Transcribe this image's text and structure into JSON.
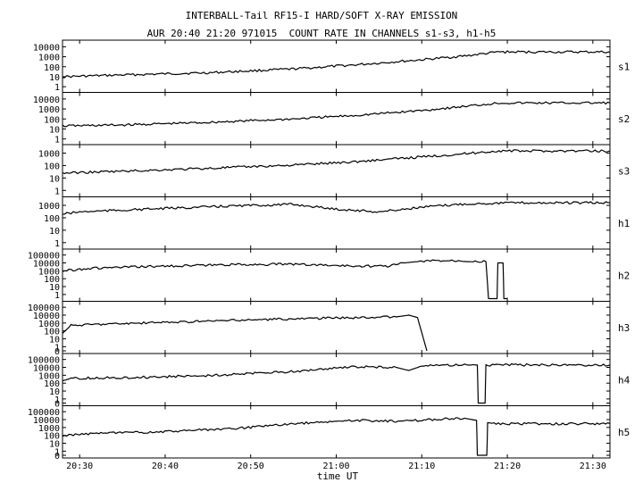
{
  "figure": {
    "title": "INTERBALL-Tail RF15-I HARD/SOFT X-RAY EMISSION",
    "subtitle": "AUR 20:40 21:20 971015  COUNT RATE IN CHANNELS s1-s3, h1-h5",
    "xlabel": "time UT"
  },
  "chart_data": {
    "type": "line",
    "title": "INTERBALL-Tail RF15-I HARD/SOFT X-RAY EMISSION",
    "subtitle": "AUR 20:40 21:20 971015  COUNT RATE IN CHANNELS s1-s3, h1-h5",
    "xlabel": "time UT",
    "x_unit": "minutes after 20:00 UT",
    "xlim": [
      28,
      92
    ],
    "x_ticks": [
      30,
      40,
      50,
      60,
      70,
      80,
      90
    ],
    "x_tick_labels": [
      "20:30",
      "20:40",
      "20:50",
      "21:00",
      "21:10",
      "21:20",
      "21:30"
    ],
    "yscale": "log",
    "grid": false,
    "panels": [
      {
        "name": "s1",
        "yticks": [
          1,
          10,
          100,
          1000,
          10000
        ],
        "ytick_labels": [
          "1",
          "10",
          "100",
          "1000",
          "10000"
        ],
        "ylim": [
          0.5,
          20000
        ],
        "points": [
          [
            28,
            10
          ],
          [
            35,
            15
          ],
          [
            45,
            25
          ],
          [
            55,
            60
          ],
          [
            62,
            150
          ],
          [
            70,
            500
          ],
          [
            75,
            1200
          ],
          [
            79,
            3000
          ],
          [
            92,
            3000
          ]
        ]
      },
      {
        "name": "s2",
        "yticks": [
          1,
          10,
          100,
          1000,
          10000
        ],
        "ytick_labels": [
          "1",
          "10",
          "100",
          "1000",
          "10000"
        ],
        "ylim": [
          0.5,
          20000
        ],
        "points": [
          [
            28,
            20
          ],
          [
            35,
            25
          ],
          [
            45,
            45
          ],
          [
            55,
            100
          ],
          [
            62,
            220
          ],
          [
            70,
            700
          ],
          [
            75,
            1800
          ],
          [
            79,
            4000
          ],
          [
            92,
            4000
          ]
        ]
      },
      {
        "name": "s3",
        "yticks": [
          1,
          10,
          100,
          1000
        ],
        "ytick_labels": [
          "1",
          "10",
          "100",
          "1000"
        ],
        "ylim": [
          0.5,
          2500
        ],
        "points": [
          [
            28,
            25
          ],
          [
            35,
            35
          ],
          [
            45,
            60
          ],
          [
            55,
            110
          ],
          [
            62,
            200
          ],
          [
            70,
            500
          ],
          [
            75,
            900
          ],
          [
            79,
            1500
          ],
          [
            92,
            1500
          ]
        ]
      },
      {
        "name": "h1",
        "yticks": [
          1,
          10,
          100,
          1000
        ],
        "ytick_labels": [
          "1",
          "10",
          "100",
          "1000"
        ],
        "ylim": [
          0.5,
          2500
        ],
        "points": [
          [
            28,
            200
          ],
          [
            30,
            300
          ],
          [
            38,
            500
          ],
          [
            48,
            900
          ],
          [
            55,
            1200
          ],
          [
            60,
            500
          ],
          [
            65,
            300
          ],
          [
            70,
            700
          ],
          [
            75,
            1300
          ],
          [
            80,
            1600
          ],
          [
            92,
            1600
          ]
        ]
      },
      {
        "name": "h2",
        "yticks": [
          1,
          10,
          100,
          1000,
          10000,
          100000
        ],
        "ytick_labels": [
          "1",
          "10",
          "100",
          "1000",
          "10000",
          "100000"
        ],
        "ylim": [
          0.3,
          200000
        ],
        "points": [
          [
            28,
            1000
          ],
          [
            31,
            2000
          ],
          [
            38,
            3500
          ],
          [
            48,
            6000
          ],
          [
            55,
            7000
          ],
          [
            62,
            4000
          ],
          [
            66,
            4000
          ],
          [
            68,
            10000
          ],
          [
            69.5,
            15000
          ],
          [
            72,
            20000
          ],
          [
            75,
            20000
          ],
          [
            77.5,
            15000
          ],
          [
            77.8,
            0.3
          ],
          [
            78.8,
            0.3
          ],
          [
            78.9,
            10000
          ],
          [
            79.5,
            10000
          ],
          [
            79.6,
            0.3
          ],
          [
            80,
            0.3
          ]
        ]
      },
      {
        "name": "h3",
        "yticks": [
          0,
          1,
          10,
          100,
          1000,
          10000,
          100000
        ],
        "ytick_labels": [
          "0",
          "1",
          "10",
          "100",
          "1000",
          "10000",
          "100000"
        ],
        "ylim": [
          0.3,
          200000
        ],
        "points": [
          [
            28,
            50
          ],
          [
            29,
            500
          ],
          [
            32,
            700
          ],
          [
            40,
            1200
          ],
          [
            50,
            2500
          ],
          [
            60,
            4500
          ],
          [
            67,
            6000
          ],
          [
            68.5,
            10000
          ],
          [
            69.5,
            5000
          ],
          [
            70.2,
            10
          ],
          [
            70.6,
            0.3
          ]
        ]
      },
      {
        "name": "h4",
        "yticks": [
          0,
          1,
          10,
          100,
          1000,
          10000,
          100000
        ],
        "ytick_labels": [
          "0",
          "1",
          "10",
          "100",
          "1000",
          "10000",
          "100000"
        ],
        "ylim": [
          0.3,
          200000
        ],
        "points": [
          [
            28,
            200
          ],
          [
            29,
            400
          ],
          [
            35,
            500
          ],
          [
            45,
            900
          ],
          [
            55,
            3000
          ],
          [
            62,
            12000
          ],
          [
            67,
            10000
          ],
          [
            68.5,
            4000
          ],
          [
            69.5,
            10000
          ],
          [
            72,
            20000
          ],
          [
            76.5,
            20000
          ],
          [
            76.6,
            0.3
          ],
          [
            77.4,
            0.3
          ],
          [
            77.5,
            20000
          ],
          [
            92,
            20000
          ]
        ]
      },
      {
        "name": "h5",
        "yticks": [
          0,
          1,
          10,
          100,
          1000,
          10000,
          100000
        ],
        "ytick_labels": [
          "0",
          "1",
          "10",
          "100",
          "1000",
          "10000",
          "100000"
        ],
        "ylim": [
          0.3,
          200000
        ],
        "points": [
          [
            28,
            80
          ],
          [
            30,
            150
          ],
          [
            38,
            250
          ],
          [
            48,
            700
          ],
          [
            55,
            3000
          ],
          [
            62,
            8000
          ],
          [
            67,
            6000
          ],
          [
            71,
            10000
          ],
          [
            75,
            15000
          ],
          [
            76.4,
            8000
          ],
          [
            76.5,
            0.3
          ],
          [
            77.6,
            0.3
          ],
          [
            77.7,
            3000
          ],
          [
            92,
            3000
          ]
        ]
      }
    ]
  }
}
